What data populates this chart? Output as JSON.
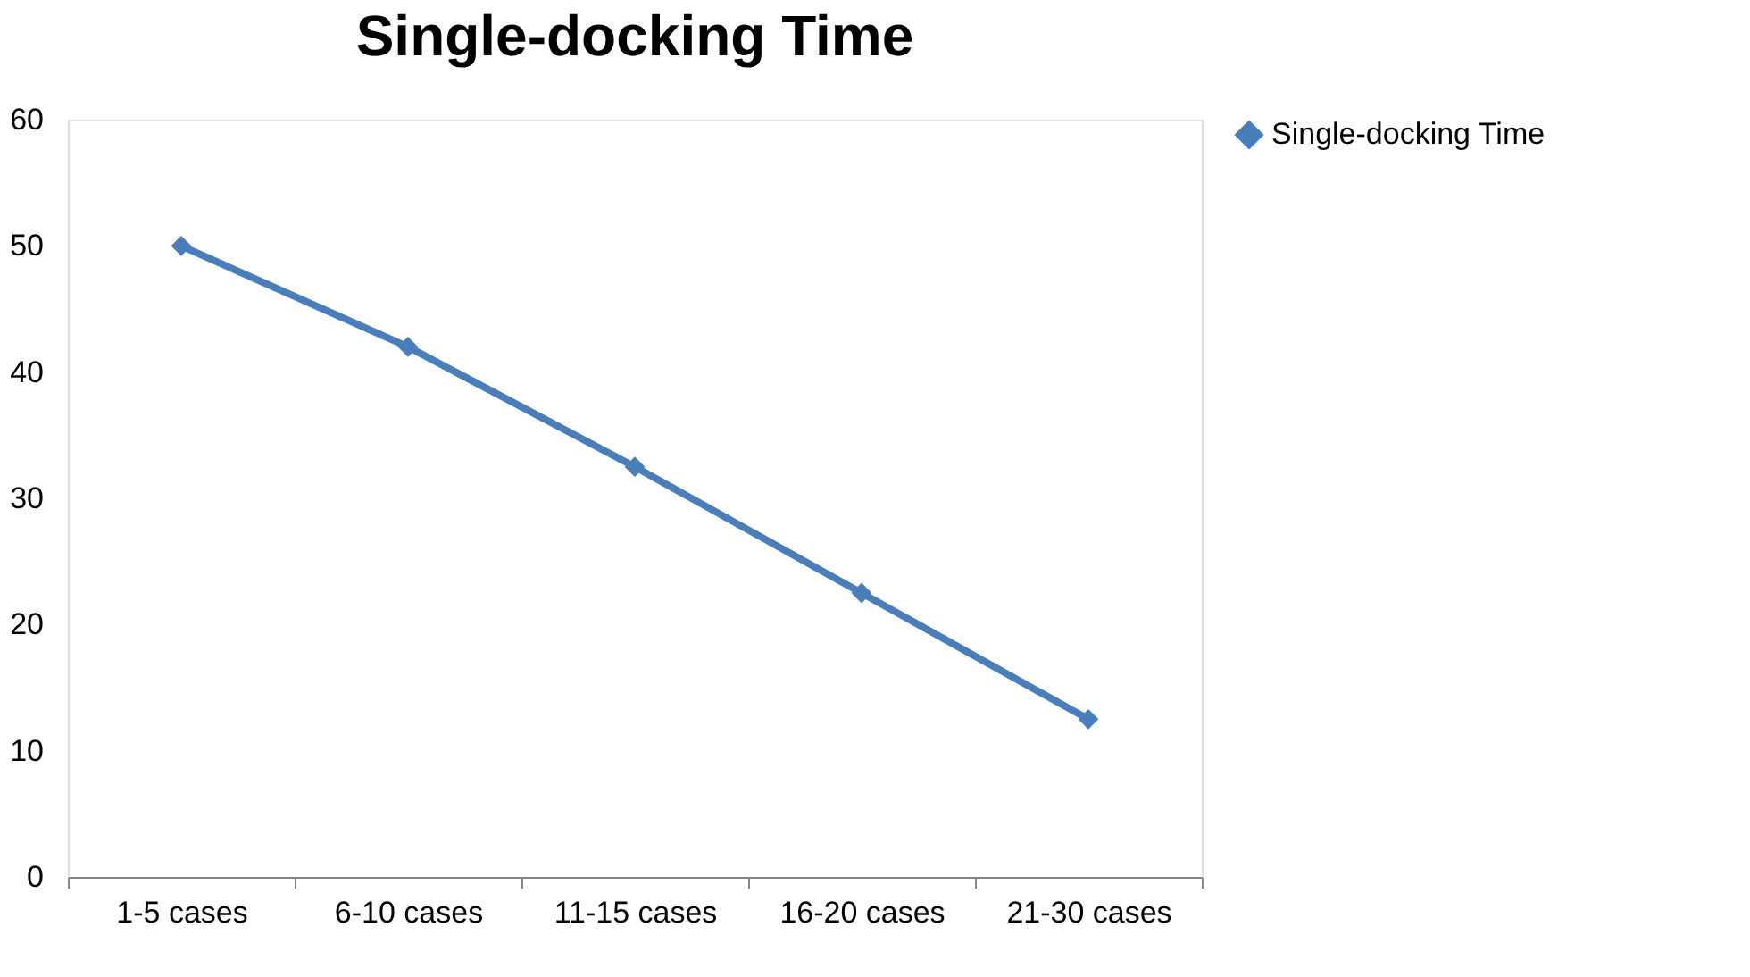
{
  "chart_data": {
    "type": "line",
    "title": "Single-docking Time",
    "categories": [
      "1-5 cases",
      "6-10 cases",
      "11-15 cases",
      "16-20 cases",
      "21-30 cases"
    ],
    "series": [
      {
        "name": "Single-docking Time",
        "color": "#4a7ebb",
        "values": [
          50,
          42,
          32.5,
          22.5,
          12.5
        ]
      }
    ],
    "ylim": [
      0,
      60
    ],
    "yticks": [
      0,
      10,
      20,
      30,
      40,
      50,
      60
    ],
    "grid": false,
    "legend": "right",
    "marker": "diamond",
    "line_style": "solid"
  }
}
